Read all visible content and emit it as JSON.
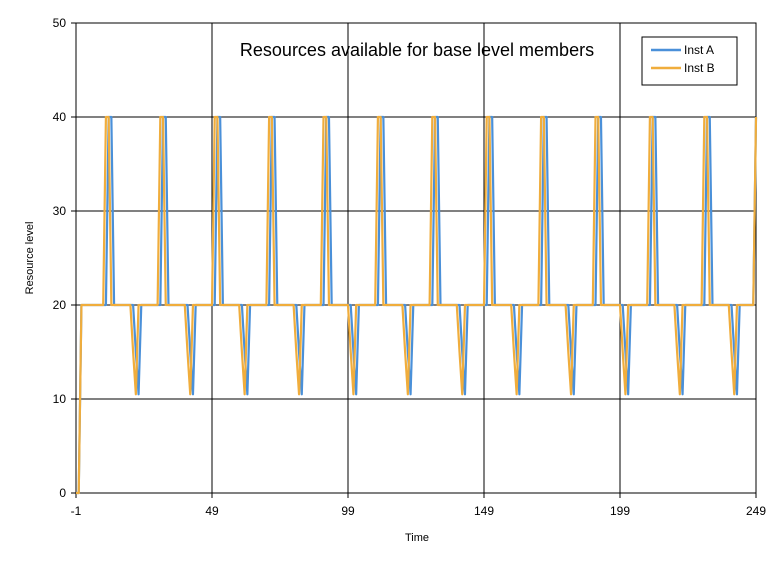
{
  "chart_data": {
    "type": "line",
    "title": "Resources available for base level members",
    "xlabel": "Time",
    "ylabel": "Resource level",
    "xlim": [
      -1,
      249
    ],
    "ylim": [
      0,
      50
    ],
    "x_ticks": [
      -1,
      49,
      99,
      149,
      199,
      249
    ],
    "y_ticks": [
      0,
      10,
      20,
      30,
      40,
      50
    ],
    "grid": true,
    "legend_position": "top-right",
    "series": [
      {
        "name": "Inst A",
        "color": "#4a90d9",
        "points": [
          [
            -1,
            0
          ],
          [
            0,
            0
          ],
          [
            1,
            20
          ],
          [
            10,
            20
          ],
          [
            11,
            40
          ],
          [
            12,
            40
          ],
          [
            13,
            20
          ],
          [
            17,
            20
          ],
          [
            20,
            20
          ],
          [
            21,
            15
          ],
          [
            22,
            10.5
          ],
          [
            23,
            20
          ],
          [
            30,
            20
          ],
          [
            31,
            40
          ],
          [
            32,
            40
          ],
          [
            33,
            20
          ],
          [
            37,
            20
          ],
          [
            40,
            20
          ],
          [
            41,
            15
          ],
          [
            42,
            10.5
          ],
          [
            43,
            20
          ],
          [
            50,
            20
          ],
          [
            51,
            40
          ],
          [
            52,
            40
          ],
          [
            53,
            20
          ],
          [
            57,
            20
          ],
          [
            60,
            20
          ],
          [
            61,
            15
          ],
          [
            62,
            10.5
          ],
          [
            63,
            20
          ],
          [
            70,
            20
          ],
          [
            71,
            40
          ],
          [
            72,
            40
          ],
          [
            73,
            20
          ],
          [
            77,
            20
          ],
          [
            80,
            20
          ],
          [
            81,
            15
          ],
          [
            82,
            10.5
          ],
          [
            83,
            20
          ],
          [
            90,
            20
          ],
          [
            91,
            40
          ],
          [
            92,
            40
          ],
          [
            93,
            20
          ],
          [
            97,
            20
          ],
          [
            100,
            20
          ],
          [
            101,
            15
          ],
          [
            102,
            10.5
          ],
          [
            103,
            20
          ],
          [
            110,
            20
          ],
          [
            111,
            40
          ],
          [
            112,
            40
          ],
          [
            113,
            20
          ],
          [
            117,
            20
          ],
          [
            120,
            20
          ],
          [
            121,
            15
          ],
          [
            122,
            10.5
          ],
          [
            123,
            20
          ],
          [
            130,
            20
          ],
          [
            131,
            40
          ],
          [
            132,
            40
          ],
          [
            133,
            20
          ],
          [
            137,
            20
          ],
          [
            140,
            20
          ],
          [
            141,
            15
          ],
          [
            142,
            10.5
          ],
          [
            143,
            20
          ],
          [
            150,
            20
          ],
          [
            151,
            40
          ],
          [
            152,
            40
          ],
          [
            153,
            20
          ],
          [
            157,
            20
          ],
          [
            160,
            20
          ],
          [
            161,
            15
          ],
          [
            162,
            10.5
          ],
          [
            163,
            20
          ],
          [
            170,
            20
          ],
          [
            171,
            40
          ],
          [
            172,
            40
          ],
          [
            173,
            20
          ],
          [
            177,
            20
          ],
          [
            180,
            20
          ],
          [
            181,
            15
          ],
          [
            182,
            10.5
          ],
          [
            183,
            20
          ],
          [
            190,
            20
          ],
          [
            191,
            40
          ],
          [
            192,
            40
          ],
          [
            193,
            20
          ],
          [
            197,
            20
          ],
          [
            200,
            20
          ],
          [
            201,
            15
          ],
          [
            202,
            10.5
          ],
          [
            203,
            20
          ],
          [
            210,
            20
          ],
          [
            211,
            40
          ],
          [
            212,
            40
          ],
          [
            213,
            20
          ],
          [
            217,
            20
          ],
          [
            220,
            20
          ],
          [
            221,
            15
          ],
          [
            222,
            10.5
          ],
          [
            223,
            20
          ],
          [
            230,
            20
          ],
          [
            231,
            40
          ],
          [
            232,
            40
          ],
          [
            233,
            20
          ],
          [
            237,
            20
          ],
          [
            240,
            20
          ],
          [
            241,
            15
          ],
          [
            242,
            10.5
          ],
          [
            243,
            20
          ],
          [
            248,
            20
          ],
          [
            249,
            40
          ]
        ]
      },
      {
        "name": "Inst B",
        "color": "#f0ad3c",
        "points": [
          [
            -1,
            0
          ],
          [
            0,
            0
          ],
          [
            1,
            20
          ],
          [
            9,
            20
          ],
          [
            10,
            40
          ],
          [
            11,
            40
          ],
          [
            12,
            20
          ],
          [
            18,
            20
          ],
          [
            19,
            20
          ],
          [
            20,
            15
          ],
          [
            21,
            10.5
          ],
          [
            22,
            20
          ],
          [
            29,
            20
          ],
          [
            30,
            40
          ],
          [
            31,
            40
          ],
          [
            32,
            20
          ],
          [
            38,
            20
          ],
          [
            39,
            20
          ],
          [
            40,
            15
          ],
          [
            41,
            10.5
          ],
          [
            42,
            20
          ],
          [
            49,
            20
          ],
          [
            50,
            40
          ],
          [
            51,
            40
          ],
          [
            52,
            20
          ],
          [
            58,
            20
          ],
          [
            59,
            20
          ],
          [
            60,
            15
          ],
          [
            61,
            10.5
          ],
          [
            62,
            20
          ],
          [
            69,
            20
          ],
          [
            70,
            40
          ],
          [
            71,
            40
          ],
          [
            72,
            20
          ],
          [
            78,
            20
          ],
          [
            79,
            20
          ],
          [
            80,
            15
          ],
          [
            81,
            10.5
          ],
          [
            82,
            20
          ],
          [
            89,
            20
          ],
          [
            90,
            40
          ],
          [
            91,
            40
          ],
          [
            92,
            20
          ],
          [
            98,
            20
          ],
          [
            99,
            20
          ],
          [
            100,
            15
          ],
          [
            101,
            10.5
          ],
          [
            102,
            20
          ],
          [
            109,
            20
          ],
          [
            110,
            40
          ],
          [
            111,
            40
          ],
          [
            112,
            20
          ],
          [
            118,
            20
          ],
          [
            119,
            20
          ],
          [
            120,
            15
          ],
          [
            121,
            10.5
          ],
          [
            122,
            20
          ],
          [
            129,
            20
          ],
          [
            130,
            40
          ],
          [
            131,
            40
          ],
          [
            132,
            20
          ],
          [
            138,
            20
          ],
          [
            139,
            20
          ],
          [
            140,
            15
          ],
          [
            141,
            10.5
          ],
          [
            142,
            20
          ],
          [
            149,
            20
          ],
          [
            150,
            40
          ],
          [
            151,
            40
          ],
          [
            152,
            20
          ],
          [
            158,
            20
          ],
          [
            159,
            20
          ],
          [
            160,
            15
          ],
          [
            161,
            10.5
          ],
          [
            162,
            20
          ],
          [
            169,
            20
          ],
          [
            170,
            40
          ],
          [
            171,
            40
          ],
          [
            172,
            20
          ],
          [
            178,
            20
          ],
          [
            179,
            20
          ],
          [
            180,
            15
          ],
          [
            181,
            10.5
          ],
          [
            182,
            20
          ],
          [
            189,
            20
          ],
          [
            190,
            40
          ],
          [
            191,
            40
          ],
          [
            192,
            20
          ],
          [
            198,
            20
          ],
          [
            199,
            20
          ],
          [
            200,
            15
          ],
          [
            201,
            10.5
          ],
          [
            202,
            20
          ],
          [
            209,
            20
          ],
          [
            210,
            40
          ],
          [
            211,
            40
          ],
          [
            212,
            20
          ],
          [
            218,
            20
          ],
          [
            219,
            20
          ],
          [
            220,
            15
          ],
          [
            221,
            10.5
          ],
          [
            222,
            20
          ],
          [
            229,
            20
          ],
          [
            230,
            40
          ],
          [
            231,
            40
          ],
          [
            232,
            20
          ],
          [
            238,
            20
          ],
          [
            239,
            20
          ],
          [
            240,
            15
          ],
          [
            241,
            10.5
          ],
          [
            242,
            20
          ],
          [
            248,
            20
          ],
          [
            249,
            40
          ]
        ]
      }
    ]
  }
}
